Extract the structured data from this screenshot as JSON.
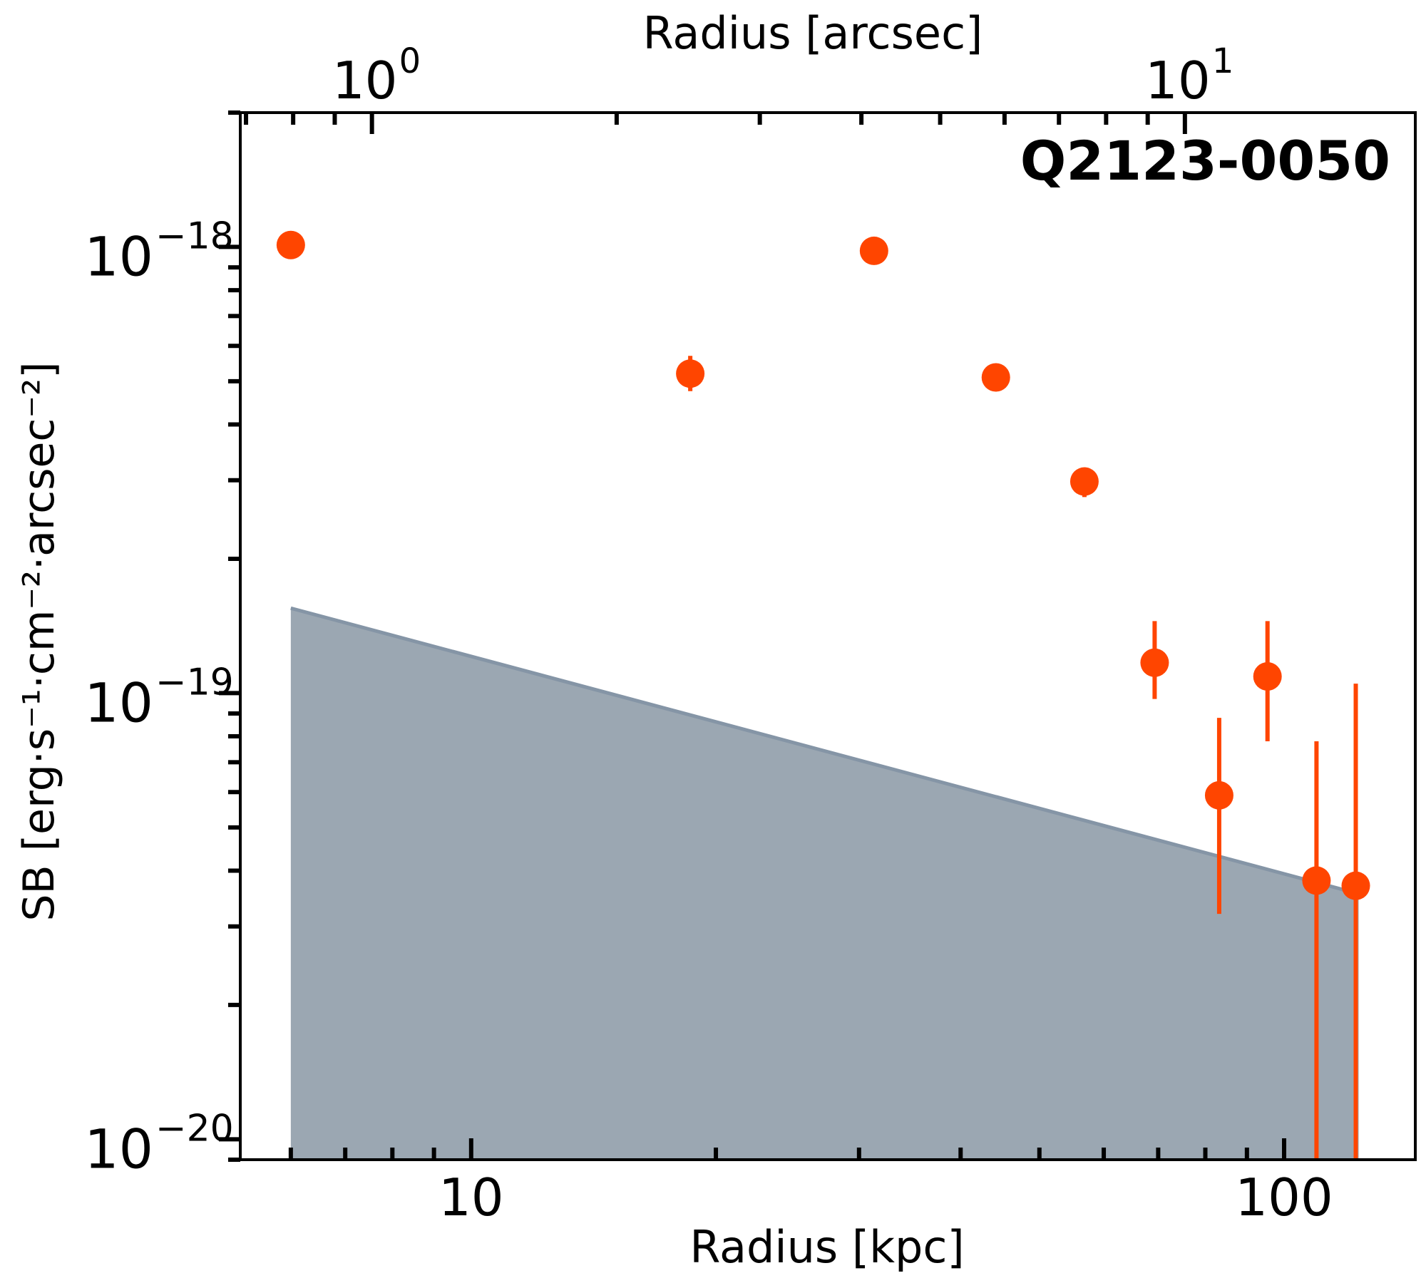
{
  "chart_data": {
    "type": "scatter",
    "title": "Q2123-0050",
    "xlabel": "Radius [kpc]",
    "xlabel_top": "Radius [arcsec]",
    "ylabel": "SB [erg·s⁻¹·cm⁻²·arcsec⁻²]",
    "x_scale": "log",
    "y_scale": "log",
    "xlim": [
      5.2,
      145
    ],
    "ylim": [
      9e-21,
      2e-18
    ],
    "x_ticks": [
      {
        "value": 10,
        "label": "10"
      },
      {
        "value": 100,
        "label": "100"
      }
    ],
    "x_top_ticks": [
      {
        "value": 1,
        "base": "10",
        "exp": "0"
      },
      {
        "value": 10,
        "base": "10",
        "exp": "1"
      }
    ],
    "y_ticks": [
      {
        "value": 1e-18,
        "base": "10",
        "exp": "−18"
      },
      {
        "value": 1e-19,
        "base": "10",
        "exp": "−19"
      },
      {
        "value": 1e-20,
        "base": "10",
        "exp": "−20"
      }
    ],
    "grid": false,
    "colors": {
      "points": "#ff4500",
      "band": "#9ba7b2",
      "band_edge": "#8595a6"
    },
    "points": [
      {
        "x": 6.0,
        "y": 1.01e-18,
        "ylo": 9.4e-19,
        "yhi": 1.06e-18
      },
      {
        "x": 18.6,
        "y": 5.2e-19,
        "ylo": 4.75e-19,
        "yhi": 5.7e-19
      },
      {
        "x": 31.3,
        "y": 9.8e-19,
        "ylo": 9.5e-19,
        "yhi": 1.01e-18
      },
      {
        "x": 44.2,
        "y": 5.1e-19,
        "ylo": 4.9e-19,
        "yhi": 5.3e-19
      },
      {
        "x": 56.8,
        "y": 2.98e-19,
        "ylo": 2.75e-19,
        "yhi": 3.2e-19
      },
      {
        "x": 69.3,
        "y": 1.17e-19,
        "ylo": 9.7e-20,
        "yhi": 1.45e-19
      },
      {
        "x": 83.2,
        "y": 5.9e-20,
        "ylo": 3.2e-20,
        "yhi": 8.8e-20
      },
      {
        "x": 95.4,
        "y": 1.09e-19,
        "ylo": 7.8e-20,
        "yhi": 1.45e-19
      },
      {
        "x": 109.6,
        "y": 3.8e-20,
        "ylo": 9e-21,
        "yhi": 7.8e-20
      },
      {
        "x": 122.5,
        "y": 3.7e-20,
        "ylo": 9e-21,
        "yhi": 1.05e-19
      }
    ],
    "limit_band": {
      "x": [
        6.0,
        123.5
      ],
      "y_top": [
        1.55e-19,
        3.55e-20
      ],
      "y_bottom": 9e-21
    }
  }
}
